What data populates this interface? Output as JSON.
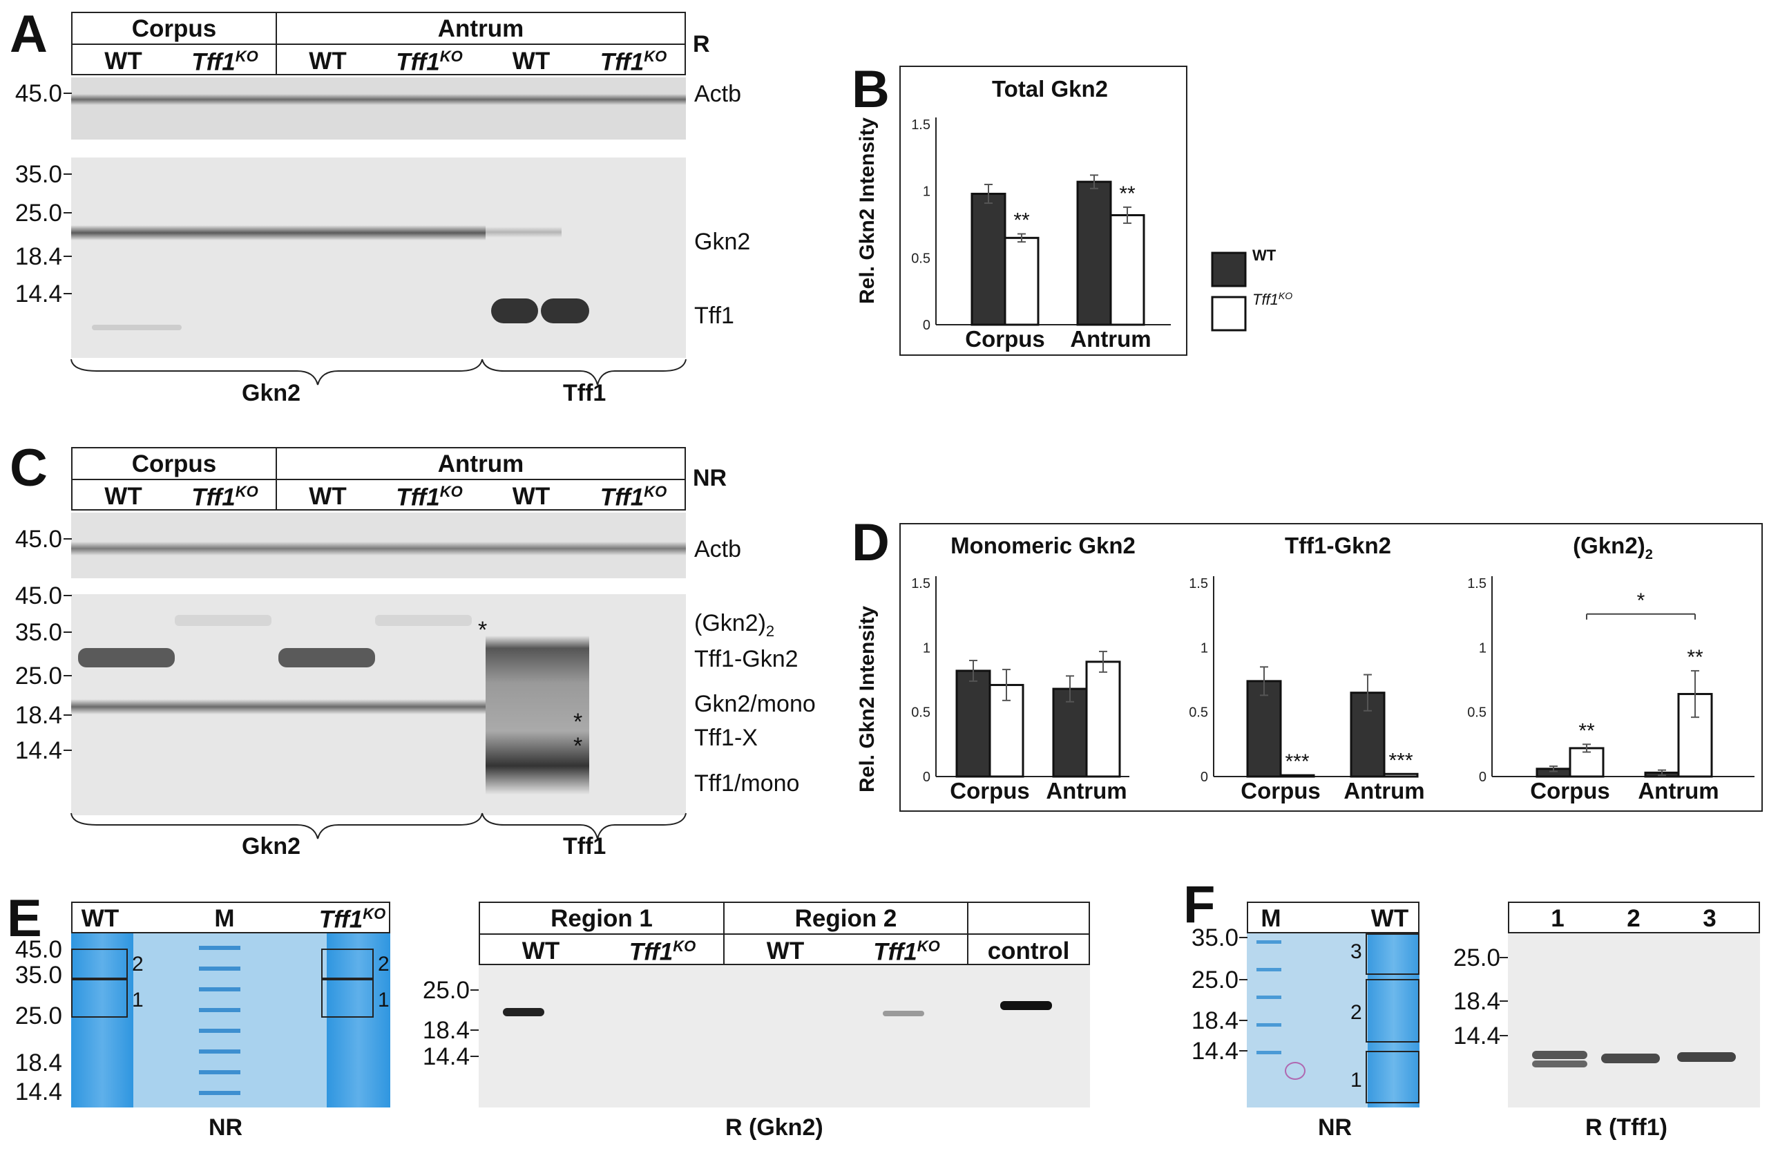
{
  "panels": {
    "A": "A",
    "B": "B",
    "C": "C",
    "D": "D",
    "E": "E",
    "F": "F"
  },
  "header": {
    "corpus": "Corpus",
    "antrum": "Antrum",
    "wt": "WT",
    "ko_base": "Tff1",
    "ko_sup": "KO",
    "reducing": "R",
    "nonreducing": "NR"
  },
  "mw_markers": {
    "m45": "45.0",
    "m35": "35.0",
    "m25": "25.0",
    "m184": "18.4",
    "m144": "14.4"
  },
  "blot_labels": {
    "actb": "Actb",
    "gkn2": "Gkn2",
    "tff1": "Tff1",
    "gkn2_dimer_base": "(Gkn2)",
    "gkn2_dimer_sub": "2",
    "tff1_gkn2": "Tff1-Gkn2",
    "gkn2_mono": "Gkn2/mono",
    "tff1_x": "Tff1-X",
    "tff1_mono": "Tff1/mono",
    "asterisk": "*"
  },
  "panel_e": {
    "marker_lane": "M",
    "region1": "Region 1",
    "region2": "Region 2",
    "control": "control",
    "box1": "1",
    "box2": "2",
    "nr": "NR",
    "r_gkn2": "R (Gkn2)"
  },
  "panel_f": {
    "marker_lane": "M",
    "lane1": "1",
    "lane2": "2",
    "lane3": "3",
    "nr": "NR",
    "r_tff1": "R (Tff1)"
  },
  "chart_data": [
    {
      "type": "bar",
      "title": "Total Gkn2",
      "ylabel": "Rel. Gkn2 Intensity",
      "categories": [
        "Corpus",
        "Antrum"
      ],
      "series": [
        {
          "name": "WT",
          "values": [
            0.98,
            1.07
          ],
          "errors": [
            0.07,
            0.05
          ],
          "color": "#333333"
        },
        {
          "name": "Tff1KO",
          "values": [
            0.65,
            0.82
          ],
          "errors": [
            0.03,
            0.06
          ],
          "color": "#ffffff"
        }
      ],
      "significance": [
        "**",
        "**"
      ],
      "yticks": [
        "0",
        "0.5",
        "1",
        "1.5"
      ],
      "ylim": [
        0,
        1.5
      ],
      "legend": "right"
    },
    {
      "type": "bar",
      "title": "Monomeric Gkn2",
      "ylabel": "Rel. Gkn2 Intensity",
      "categories": [
        "Corpus",
        "Antrum"
      ],
      "series": [
        {
          "name": "WT",
          "values": [
            0.82,
            0.68
          ],
          "errors": [
            0.08,
            0.1
          ],
          "color": "#333333"
        },
        {
          "name": "Tff1KO",
          "values": [
            0.71,
            0.89
          ],
          "errors": [
            0.12,
            0.08
          ],
          "color": "#ffffff"
        }
      ],
      "significance": [
        "",
        ""
      ],
      "yticks": [
        "0",
        "0.5",
        "1",
        "1.5"
      ],
      "ylim": [
        0,
        1.5
      ]
    },
    {
      "type": "bar",
      "title": "Tff1-Gkn2",
      "categories": [
        "Corpus",
        "Antrum"
      ],
      "series": [
        {
          "name": "WT",
          "values": [
            0.74,
            0.65
          ],
          "errors": [
            0.11,
            0.14
          ],
          "color": "#333333"
        },
        {
          "name": "Tff1KO",
          "values": [
            0.01,
            0.02
          ],
          "errors": [
            0,
            0
          ],
          "color": "#ffffff"
        }
      ],
      "significance": [
        "***",
        "***"
      ],
      "yticks": [
        "0",
        "0.5",
        "1",
        "1.5"
      ],
      "ylim": [
        0,
        1.5
      ]
    },
    {
      "type": "bar",
      "title_base": "(Gkn2)",
      "title_sub": "2",
      "categories": [
        "Corpus",
        "Antrum"
      ],
      "series": [
        {
          "name": "WT",
          "values": [
            0.06,
            0.03
          ],
          "errors": [
            0.02,
            0.02
          ],
          "color": "#333333"
        },
        {
          "name": "Tff1KO",
          "values": [
            0.22,
            0.64
          ],
          "errors": [
            0.03,
            0.18
          ],
          "color": "#ffffff"
        }
      ],
      "significance": [
        "**",
        "**"
      ],
      "bracket_sig": "*",
      "yticks": [
        "0",
        "0.5",
        "1",
        "1.5"
      ],
      "ylim": [
        0,
        1.5
      ]
    }
  ]
}
